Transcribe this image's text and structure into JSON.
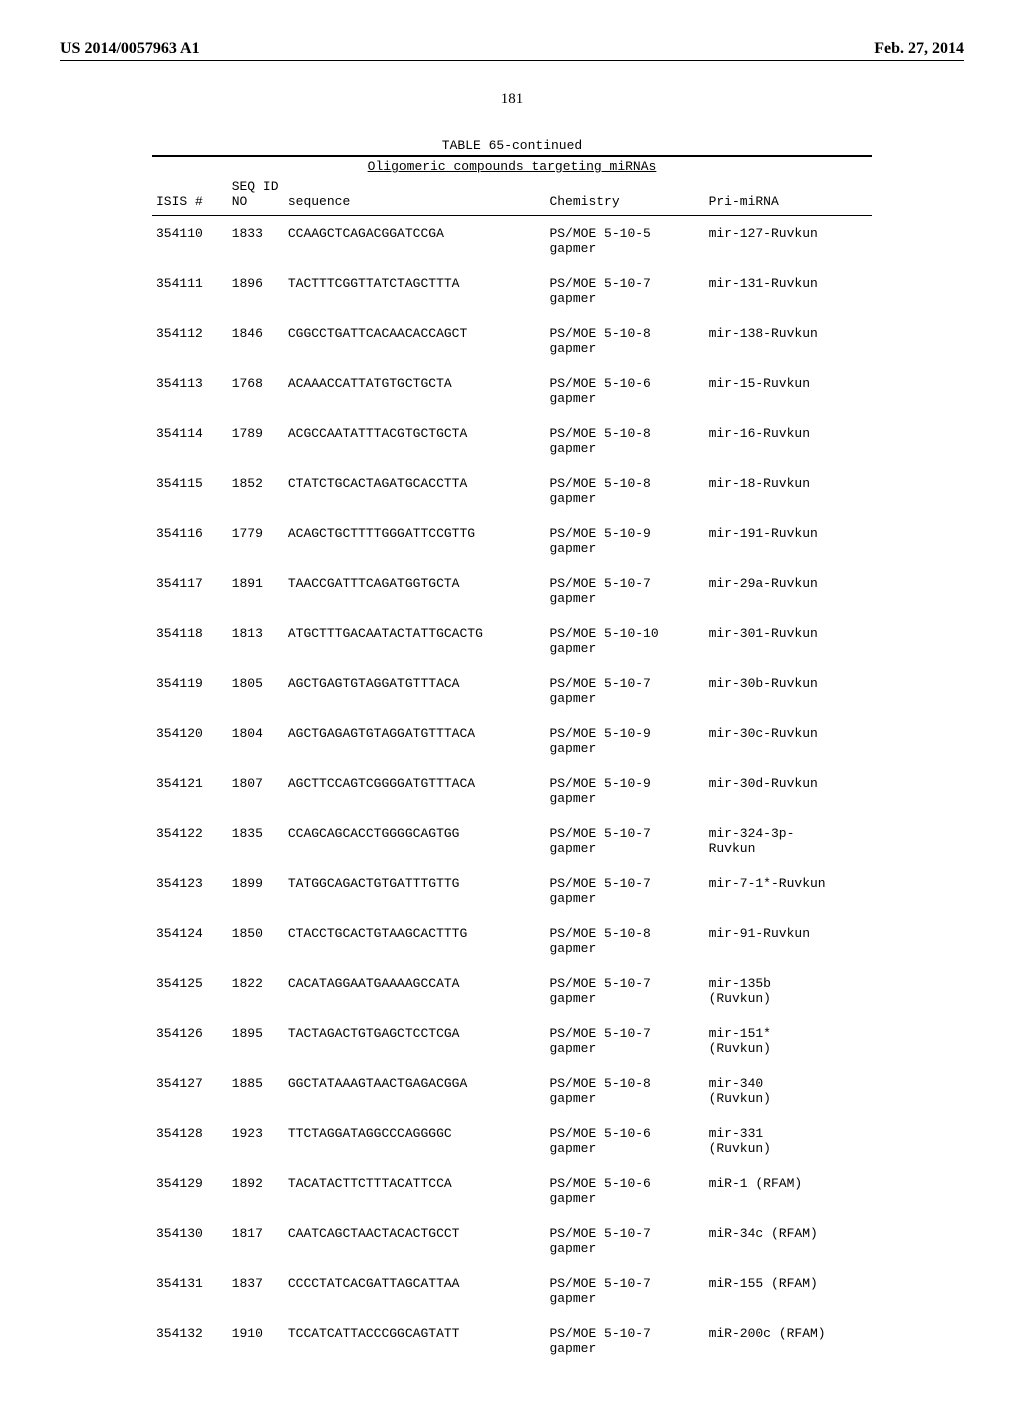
{
  "header": {
    "left": "US 2014/0057963 A1",
    "right": "Feb. 27, 2014"
  },
  "page_number": "181",
  "table": {
    "continued_label": "TABLE 65-continued",
    "subtitle": "Oligomeric compounds targeting miRNAs",
    "columns": {
      "isis": "ISIS #",
      "seq": "SEQ\nID\nNO",
      "sequence": "sequence",
      "chemistry": "Chemistry",
      "pri": "Pri-miRNA"
    },
    "rows": [
      {
        "isis": "354110",
        "seq": "1833",
        "sequence": "CCAAGCTCAGACGGATCCGA",
        "chemistry": "PS/MOE 5-10-5\ngapmer",
        "pri": "mir-127-Ruvkun"
      },
      {
        "isis": "354111",
        "seq": "1896",
        "sequence": "TACTTTCGGTTATCTAGCTTTA",
        "chemistry": "PS/MOE 5-10-7\ngapmer",
        "pri": "mir-131-Ruvkun"
      },
      {
        "isis": "354112",
        "seq": "1846",
        "sequence": "CGGCCTGATTCACAACACCAGCT",
        "chemistry": "PS/MOE 5-10-8\ngapmer",
        "pri": "mir-138-Ruvkun"
      },
      {
        "isis": "354113",
        "seq": "1768",
        "sequence": "ACAAACCATTATGTGCTGCTA",
        "chemistry": "PS/MOE 5-10-6\ngapmer",
        "pri": "mir-15-Ruvkun"
      },
      {
        "isis": "354114",
        "seq": "1789",
        "sequence": "ACGCCAATATTTACGTGCTGCTA",
        "chemistry": "PS/MOE 5-10-8\ngapmer",
        "pri": "mir-16-Ruvkun"
      },
      {
        "isis": "354115",
        "seq": "1852",
        "sequence": "CTATCTGCACTAGATGCACCTTA",
        "chemistry": "PS/MOE 5-10-8\ngapmer",
        "pri": "mir-18-Ruvkun"
      },
      {
        "isis": "354116",
        "seq": "1779",
        "sequence": "ACAGCTGCTTTTGGGATTCCGTTG",
        "chemistry": "PS/MOE 5-10-9\ngapmer",
        "pri": "mir-191-Ruvkun"
      },
      {
        "isis": "354117",
        "seq": "1891",
        "sequence": "TAACCGATTTCAGATGGTGCTA",
        "chemistry": "PS/MOE 5-10-7\ngapmer",
        "pri": "mir-29a-Ruvkun"
      },
      {
        "isis": "354118",
        "seq": "1813",
        "sequence": "ATGCTTTGACAATACTATTGCACTG",
        "chemistry": "PS/MOE 5-10-10\ngapmer",
        "pri": "mir-301-Ruvkun"
      },
      {
        "isis": "354119",
        "seq": "1805",
        "sequence": "AGCTGAGTGTAGGATGTTTACA",
        "chemistry": "PS/MOE 5-10-7\ngapmer",
        "pri": "mir-30b-Ruvkun"
      },
      {
        "isis": "354120",
        "seq": "1804",
        "sequence": "AGCTGAGAGTGTAGGATGTTTACA",
        "chemistry": "PS/MOE 5-10-9\ngapmer",
        "pri": "mir-30c-Ruvkun"
      },
      {
        "isis": "354121",
        "seq": "1807",
        "sequence": "AGCTTCCAGTCGGGGATGTTTACA",
        "chemistry": "PS/MOE 5-10-9\ngapmer",
        "pri": "mir-30d-Ruvkun"
      },
      {
        "isis": "354122",
        "seq": "1835",
        "sequence": "CCAGCAGCACCTGGGGCAGTGG",
        "chemistry": "PS/MOE 5-10-7\ngapmer",
        "pri": "mir-324-3p-\nRuvkun"
      },
      {
        "isis": "354123",
        "seq": "1899",
        "sequence": "TATGGCAGACTGTGATTTGTTG",
        "chemistry": "PS/MOE 5-10-7\ngapmer",
        "pri": "mir-7-1*-Ruvkun"
      },
      {
        "isis": "354124",
        "seq": "1850",
        "sequence": "CTACCTGCACTGTAAGCACTTTG",
        "chemistry": "PS/MOE 5-10-8\ngapmer",
        "pri": "mir-91-Ruvkun"
      },
      {
        "isis": "354125",
        "seq": "1822",
        "sequence": "CACATAGGAATGAAAAGCCATA",
        "chemistry": "PS/MOE 5-10-7\ngapmer",
        "pri": "mir-135b\n(Ruvkun)"
      },
      {
        "isis": "354126",
        "seq": "1895",
        "sequence": "TACTAGACTGTGAGCTCCTCGA",
        "chemistry": "PS/MOE 5-10-7\ngapmer",
        "pri": "mir-151*\n(Ruvkun)"
      },
      {
        "isis": "354127",
        "seq": "1885",
        "sequence": "GGCTATAAAGTAACTGAGACGGA",
        "chemistry": "PS/MOE 5-10-8\ngapmer",
        "pri": "mir-340\n(Ruvkun)"
      },
      {
        "isis": "354128",
        "seq": "1923",
        "sequence": "TTCTAGGATAGGCCCAGGGGC",
        "chemistry": "PS/MOE 5-10-6\ngapmer",
        "pri": "mir-331\n(Ruvkun)"
      },
      {
        "isis": "354129",
        "seq": "1892",
        "sequence": "TACATACTTCTTTACATTCCA",
        "chemistry": "PS/MOE 5-10-6\ngapmer",
        "pri": "miR-1 (RFAM)"
      },
      {
        "isis": "354130",
        "seq": "1817",
        "sequence": "CAATCAGCTAACTACACTGCCT",
        "chemistry": "PS/MOE 5-10-7\ngapmer",
        "pri": "miR-34c (RFAM)"
      },
      {
        "isis": "354131",
        "seq": "1837",
        "sequence": "CCCCTATCACGATTAGCATTAA",
        "chemistry": "PS/MOE 5-10-7\ngapmer",
        "pri": "miR-155 (RFAM)"
      },
      {
        "isis": "354132",
        "seq": "1910",
        "sequence": "TCCATCATTACCCGGCAGTATT",
        "chemistry": "PS/MOE 5-10-7\ngapmer",
        "pri": "miR-200c (RFAM)"
      }
    ]
  }
}
